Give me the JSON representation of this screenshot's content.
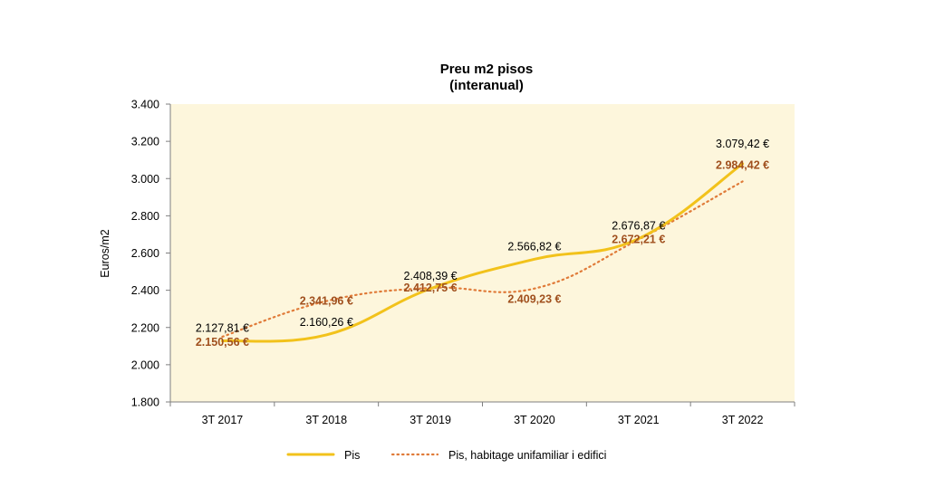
{
  "chart_data": {
    "type": "line",
    "title": "Preu m2 pisos",
    "subtitle": "(interanual)",
    "xlabel": "",
    "ylabel": "Euros/m2",
    "ylim": [
      1800,
      3400
    ],
    "ytick_step": 200,
    "ytick_labels": [
      "1.800",
      "2.000",
      "2.200",
      "2.400",
      "2.600",
      "2.800",
      "3.000",
      "3.200",
      "3.400"
    ],
    "categories": [
      "3T 2017",
      "3T 2018",
      "3T 2019",
      "3T 2020",
      "3T 2021",
      "3T 2022"
    ],
    "series": [
      {
        "name": "Pis",
        "values": [
          2127.81,
          2160.26,
          2408.39,
          2566.82,
          2676.87,
          3079.42
        ],
        "labels": [
          "2.127,81 €",
          "2.160,26 €",
          "2.408,39 €",
          "2.566,82 €",
          "2.676,87 €",
          "3.079,42 €"
        ],
        "color": "#f2c21b",
        "style": "solid"
      },
      {
        "name": "Pis, habitage unifamiliar i edifici",
        "values": [
          2150.56,
          2341.96,
          2412.75,
          2409.23,
          2672.21,
          2984.42
        ],
        "labels": [
          "2.150,56 €",
          "2.341,96 €",
          "2.412,75 €",
          "2.409,23 €",
          "2.672,21 €",
          "2.984,42 €"
        ],
        "color": "#e07b39",
        "label_color": "#a0501e",
        "style": "dotted"
      }
    ],
    "plot_background": "#fdf6dc",
    "grid": false,
    "legend_position": "bottom"
  }
}
